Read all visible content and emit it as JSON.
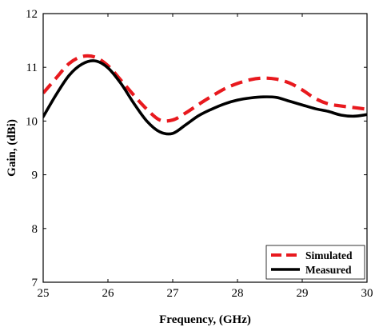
{
  "chart_data": {
    "type": "line",
    "xlabel": "Frequency, (GHz)",
    "ylabel": "Gain, (dBi)",
    "xlim": [
      25,
      30
    ],
    "ylim": [
      7,
      12
    ],
    "xticks": [
      25,
      26,
      27,
      28,
      29,
      30
    ],
    "yticks": [
      7,
      8,
      9,
      10,
      11,
      12
    ],
    "xtick_labels": [
      "25",
      "26",
      "27",
      "28",
      "29",
      "30"
    ],
    "ytick_labels": [
      "7",
      "8",
      "9",
      "10",
      "11",
      "12"
    ],
    "grid": false,
    "legend_position": "bottom-right",
    "series": [
      {
        "name": "Simulated",
        "color": "#e8191e",
        "style": "dashed",
        "x": [
          25.0,
          25.2,
          25.4,
          25.6,
          25.8,
          26.0,
          26.2,
          26.4,
          26.6,
          26.8,
          27.0,
          27.2,
          27.4,
          27.6,
          27.8,
          28.0,
          28.2,
          28.4,
          28.6,
          28.8,
          29.0,
          29.2,
          29.4,
          29.6,
          29.8,
          30.0
        ],
        "values": [
          10.52,
          10.8,
          11.07,
          11.2,
          11.19,
          11.03,
          10.76,
          10.48,
          10.22,
          10.02,
          10.02,
          10.15,
          10.31,
          10.46,
          10.6,
          10.7,
          10.77,
          10.8,
          10.78,
          10.71,
          10.58,
          10.42,
          10.32,
          10.28,
          10.25,
          10.22
        ]
      },
      {
        "name": "Measured",
        "color": "#000000",
        "style": "solid",
        "x": [
          25.0,
          25.2,
          25.4,
          25.6,
          25.8,
          26.0,
          26.2,
          26.4,
          26.6,
          26.8,
          27.0,
          27.2,
          27.4,
          27.6,
          27.8,
          28.0,
          28.2,
          28.4,
          28.6,
          28.8,
          29.0,
          29.2,
          29.4,
          29.6,
          29.8,
          30.0
        ],
        "values": [
          10.08,
          10.49,
          10.85,
          11.06,
          11.12,
          10.99,
          10.7,
          10.33,
          10.0,
          9.8,
          9.77,
          9.93,
          10.1,
          10.22,
          10.32,
          10.39,
          10.43,
          10.45,
          10.44,
          10.37,
          10.3,
          10.23,
          10.18,
          10.11,
          10.09,
          10.12
        ]
      }
    ]
  }
}
